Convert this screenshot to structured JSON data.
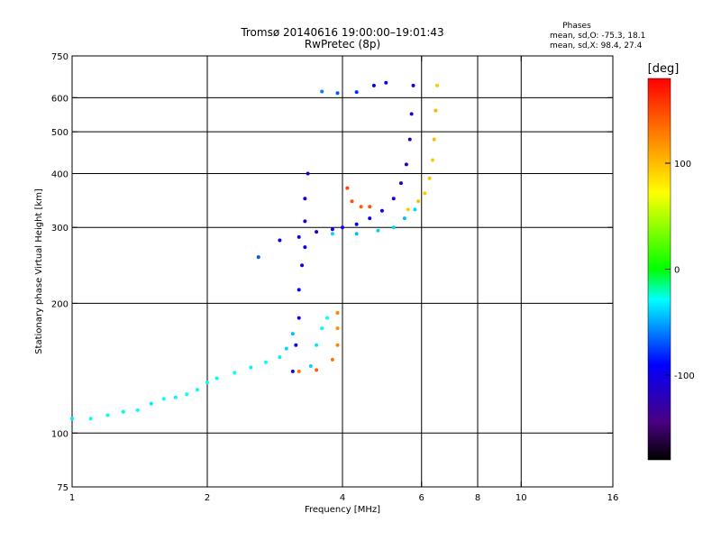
{
  "chart_data": {
    "type": "scatter",
    "title": "Tromsø 20140616 19:00:00–19:01:43",
    "subtitle": "RwPretec (8p)",
    "stats": {
      "heading": "Phases",
      "line1": "mean, sd,O: -75.3, 18.1",
      "line2": "mean, sd,X:  98.4, 27.4"
    },
    "xlabel": "Frequency [MHz]",
    "ylabel": "Stationary phase Virtual Height [km]",
    "x_scale": "log",
    "y_scale": "log",
    "xlim": [
      1,
      16
    ],
    "ylim": [
      75,
      750
    ],
    "x_ticks": [
      1,
      2,
      4,
      6,
      8,
      10,
      16
    ],
    "x_tick_labels": [
      "1",
      "2",
      "4",
      "6",
      "8",
      "10",
      "16"
    ],
    "y_ticks": [
      75,
      100,
      200,
      300,
      400,
      500,
      600,
      750
    ],
    "y_tick_labels": [
      "75",
      "100",
      "200",
      "300",
      "400",
      "500",
      "600",
      "750"
    ],
    "x_gridlines": [
      2,
      4,
      6,
      8,
      10
    ],
    "y_gridlines": [
      100,
      200,
      300,
      400,
      500,
      600
    ],
    "grid": true,
    "colorbar": {
      "label": "[deg]",
      "range": [
        -180,
        180
      ],
      "ticks": [
        100,
        0,
        -100
      ],
      "tick_labels": [
        "100",
        "0",
        "-100"
      ]
    },
    "series": [
      {
        "points": [
          [
            1.0,
            108,
            -35
          ],
          [
            1.1,
            108,
            -30
          ],
          [
            1.2,
            110,
            -28
          ],
          [
            1.3,
            112,
            -25
          ],
          [
            1.4,
            113,
            -30
          ],
          [
            1.5,
            117,
            -35
          ],
          [
            1.6,
            120,
            -30
          ],
          [
            1.7,
            121,
            -32
          ],
          [
            1.8,
            123,
            -30
          ],
          [
            1.9,
            126,
            -28
          ],
          [
            2.0,
            131,
            -30
          ],
          [
            2.1,
            134,
            -28
          ],
          [
            2.3,
            138,
            -30
          ],
          [
            2.5,
            142,
            -32
          ],
          [
            2.7,
            146,
            -30
          ],
          [
            2.9,
            150,
            -34
          ],
          [
            3.0,
            157,
            -40
          ],
          [
            3.1,
            170,
            -45
          ]
        ]
      },
      {
        "points": [
          [
            3.1,
            139,
            -110
          ],
          [
            3.15,
            160,
            -105
          ],
          [
            3.2,
            185,
            -100
          ],
          [
            3.2,
            215,
            -95
          ],
          [
            3.25,
            245,
            -100
          ],
          [
            3.3,
            270,
            -100
          ],
          [
            3.3,
            310,
            -105
          ],
          [
            3.3,
            350,
            -110
          ],
          [
            3.35,
            400,
            -110
          ]
        ]
      },
      {
        "points": [
          [
            3.4,
            143,
            -40
          ],
          [
            3.5,
            160,
            -35
          ],
          [
            3.6,
            175,
            -30
          ],
          [
            3.7,
            185,
            -30
          ]
        ]
      },
      {
        "points": [
          [
            3.2,
            139,
            130
          ],
          [
            3.5,
            140,
            140
          ],
          [
            3.8,
            148,
            130
          ],
          [
            3.9,
            160,
            125
          ],
          [
            3.9,
            175,
            120
          ],
          [
            3.9,
            190,
            125
          ]
        ]
      },
      {
        "points": [
          [
            2.6,
            256,
            -70
          ],
          [
            2.9,
            280,
            -95
          ],
          [
            3.2,
            285,
            -100
          ],
          [
            3.5,
            293,
            -105
          ],
          [
            3.8,
            297,
            -100
          ],
          [
            4.0,
            300,
            -95
          ],
          [
            4.3,
            305,
            -90
          ],
          [
            4.6,
            315,
            -95
          ],
          [
            4.9,
            328,
            -100
          ],
          [
            5.2,
            350,
            -105
          ],
          [
            5.4,
            380,
            -110
          ],
          [
            5.55,
            420,
            -110
          ],
          [
            5.65,
            480,
            -115
          ],
          [
            5.7,
            550,
            -115
          ],
          [
            5.75,
            640,
            -110
          ]
        ]
      },
      {
        "points": [
          [
            3.8,
            290,
            -40
          ],
          [
            4.3,
            290,
            -45
          ],
          [
            4.8,
            295,
            -40
          ],
          [
            5.2,
            300,
            -40
          ],
          [
            5.5,
            315,
            -45
          ],
          [
            5.8,
            330,
            -40
          ]
        ]
      },
      {
        "points": [
          [
            4.1,
            370,
            150
          ],
          [
            4.2,
            345,
            145
          ],
          [
            4.4,
            335,
            140
          ],
          [
            4.6,
            335,
            145
          ]
        ]
      },
      {
        "points": [
          [
            5.6,
            330,
            95
          ],
          [
            5.9,
            345,
            100
          ],
          [
            6.1,
            360,
            95
          ],
          [
            6.25,
            390,
            100
          ],
          [
            6.35,
            430,
            95
          ],
          [
            6.4,
            480,
            100
          ],
          [
            6.45,
            560,
            105
          ],
          [
            6.5,
            640,
            95
          ]
        ]
      },
      {
        "points": [
          [
            3.6,
            620,
            -60
          ],
          [
            3.9,
            615,
            -70
          ],
          [
            4.3,
            618,
            -80
          ],
          [
            4.7,
            640,
            -90
          ],
          [
            5.0,
            650,
            -95
          ]
        ]
      }
    ]
  }
}
